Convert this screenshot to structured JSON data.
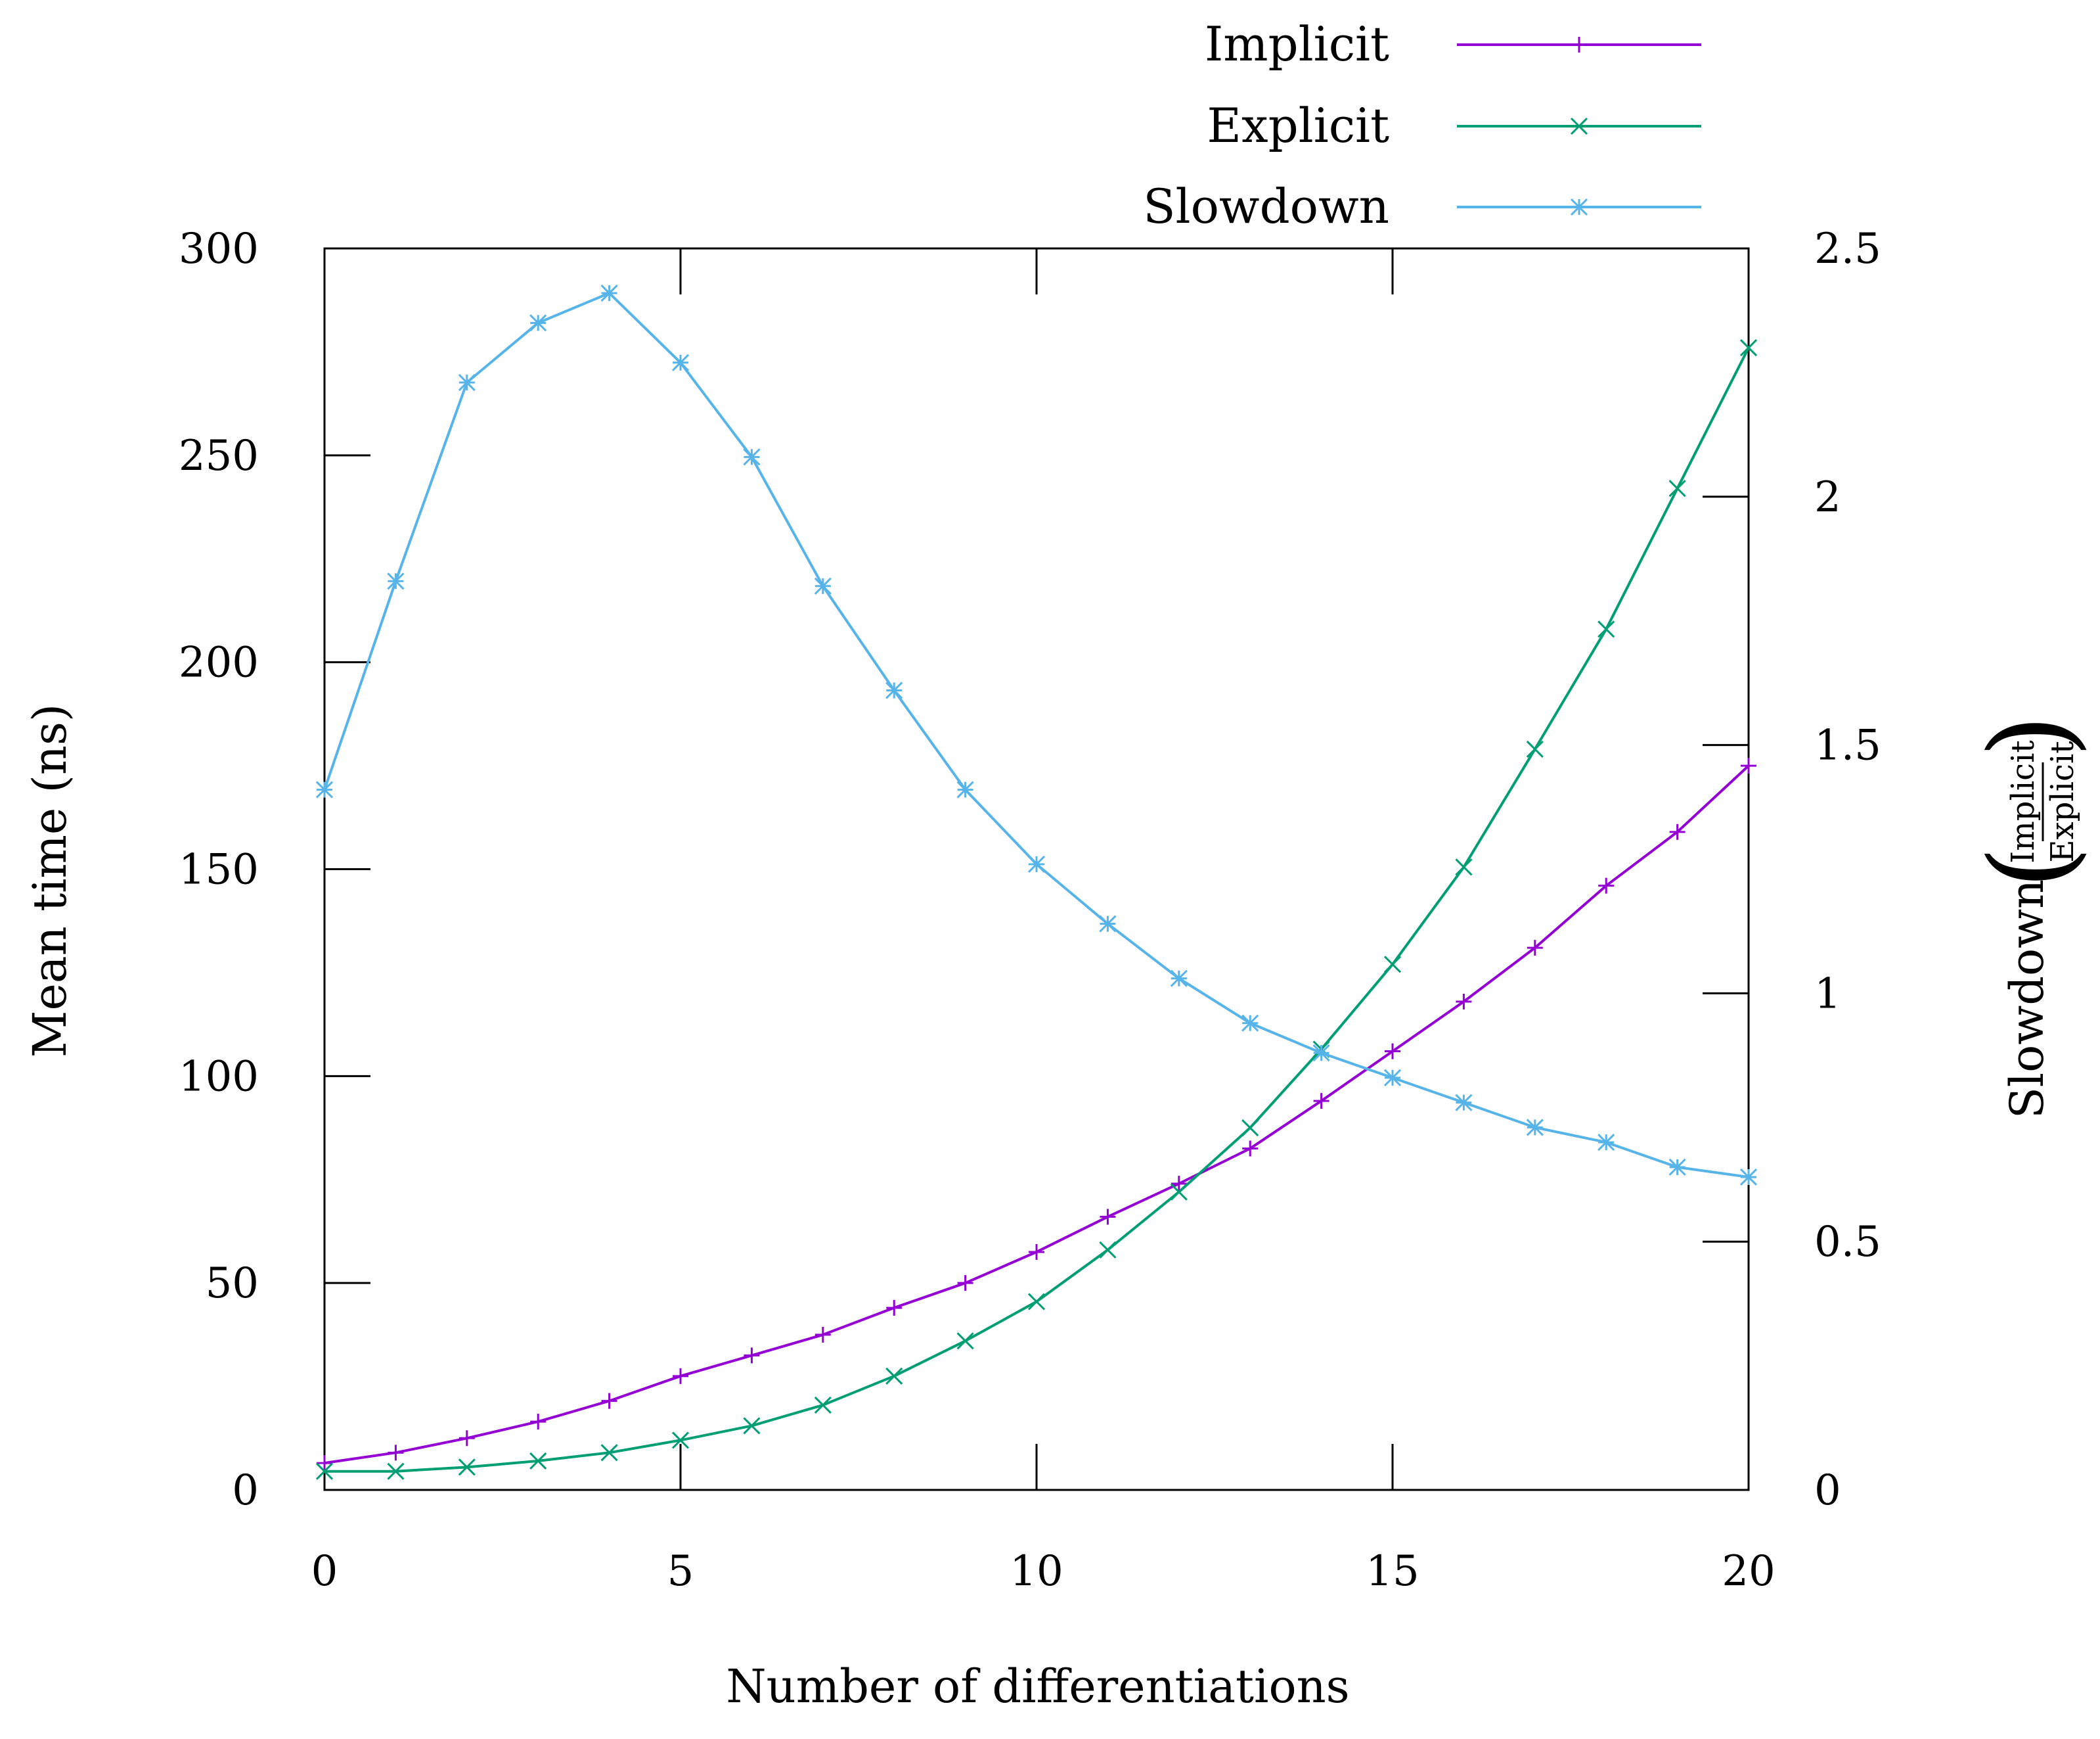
{
  "chart_data": {
    "type": "line",
    "x": [
      0,
      1,
      2,
      3,
      4,
      5,
      6,
      7,
      8,
      9,
      10,
      11,
      12,
      13,
      14,
      15,
      16,
      17,
      18,
      19,
      20
    ],
    "xlabel": "Number of differentiations",
    "ylabel": "Mean time (ns)",
    "y2label": {
      "text": "Slowdown",
      "numerator": "Implicit",
      "denominator": "Explicit"
    },
    "xlim": [
      0,
      20
    ],
    "ylim": [
      0,
      300
    ],
    "y2lim": [
      0,
      2.5
    ],
    "xticks": [
      0,
      5,
      10,
      15,
      20
    ],
    "yticks": [
      0,
      50,
      100,
      150,
      200,
      250,
      300
    ],
    "y2ticks": [
      0,
      0.5,
      1,
      1.5,
      2,
      2.5
    ],
    "xtick_labels": [
      "0",
      "5",
      "10",
      "15",
      "20"
    ],
    "ytick_labels": [
      "0",
      "50",
      "100",
      "150",
      "200",
      "250",
      "300"
    ],
    "y2tick_labels": [
      "0",
      "0.5",
      "1",
      "1.5",
      "2",
      "2.5"
    ],
    "grid": false,
    "legend_position": "top-right",
    "series": [
      {
        "name": "Implicit",
        "axis": "left",
        "color": "#9400d3",
        "marker": "plus",
        "values": [
          6.5,
          9,
          12.5,
          16.5,
          21.5,
          27.5,
          32.5,
          37.5,
          44,
          50,
          57.5,
          66,
          74,
          82.5,
          94,
          106,
          118,
          131,
          146,
          159,
          175
        ]
      },
      {
        "name": "Explicit",
        "axis": "left",
        "color": "#009e73",
        "marker": "cross",
        "values": [
          4.5,
          4.5,
          5.5,
          7,
          9,
          12,
          15.5,
          20.5,
          27.5,
          36,
          45.5,
          58,
          72,
          87.5,
          106.5,
          127,
          150.5,
          179,
          208,
          242,
          276
        ]
      },
      {
        "name": "Slowdown",
        "axis": "right",
        "color": "#56b4e9",
        "marker": "star",
        "values": [
          1.41,
          1.83,
          2.23,
          2.35,
          2.41,
          2.27,
          2.08,
          1.82,
          1.61,
          1.41,
          1.26,
          1.14,
          1.03,
          0.94,
          0.88,
          0.83,
          0.78,
          0.73,
          0.7,
          0.65,
          0.63
        ]
      }
    ]
  }
}
